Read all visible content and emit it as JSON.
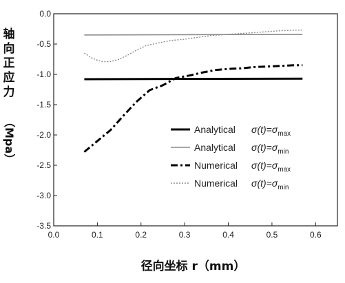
{
  "chart_data": {
    "type": "line",
    "title": "",
    "xlabel": "径向坐标 r（mm）",
    "ylabel_main": "轴向正应力",
    "ylabel_unit": "（Mpa）",
    "xlim": [
      0.0,
      0.65
    ],
    "ylim": [
      -3.5,
      0.0
    ],
    "x_ticks": [
      0.0,
      0.1,
      0.2,
      0.3,
      0.4,
      0.5,
      0.6
    ],
    "x_tick_labels": [
      "0.0",
      "0.1",
      "0.2",
      "0.3",
      "0.4",
      "0.5",
      "0.6"
    ],
    "y_ticks": [
      0.0,
      -0.5,
      -1.0,
      -1.5,
      -2.0,
      -2.5,
      -3.0,
      -3.5
    ],
    "y_tick_labels": [
      "0.0",
      "-0.5",
      "-1.0",
      "-1.5",
      "-2.0",
      "-2.5",
      "-3.0",
      "-3.5"
    ],
    "grid": false,
    "legend_position": "center-right",
    "series": [
      {
        "name_prefix": "Analytical",
        "name_cond": "σ(t)=σ",
        "name_sub": "max",
        "style": "solid-thick",
        "color": "#000000",
        "x": [
          0.07,
          0.57
        ],
        "y": [
          -1.08,
          -1.07
        ]
      },
      {
        "name_prefix": "Analytical",
        "name_cond": "σ(t)=σ",
        "name_sub": "min",
        "style": "solid-thin",
        "color": "#888888",
        "x": [
          0.07,
          0.57
        ],
        "y": [
          -0.35,
          -0.34
        ]
      },
      {
        "name_prefix": "Numerical",
        "name_cond": "σ(t)=σ",
        "name_sub": "max",
        "style": "dash-dot",
        "color": "#000000",
        "x": [
          0.07,
          0.1,
          0.13,
          0.16,
          0.19,
          0.22,
          0.25,
          0.28,
          0.31,
          0.34,
          0.37,
          0.4,
          0.43,
          0.46,
          0.49,
          0.52,
          0.55,
          0.57
        ],
        "y": [
          -2.28,
          -2.1,
          -1.92,
          -1.68,
          -1.45,
          -1.26,
          -1.18,
          -1.06,
          -1.02,
          -0.97,
          -0.93,
          -0.91,
          -0.9,
          -0.88,
          -0.87,
          -0.86,
          -0.85,
          -0.85
        ]
      },
      {
        "name_prefix": "Numerical",
        "name_cond": "σ(t)=σ",
        "name_sub": "min",
        "style": "dotted",
        "color": "#8a8a8a",
        "x": [
          0.07,
          0.09,
          0.11,
          0.13,
          0.15,
          0.17,
          0.19,
          0.21,
          0.24,
          0.27,
          0.3,
          0.33,
          0.36,
          0.4,
          0.44,
          0.48,
          0.52,
          0.55,
          0.57
        ],
        "y": [
          -0.65,
          -0.74,
          -0.79,
          -0.79,
          -0.75,
          -0.68,
          -0.6,
          -0.53,
          -0.48,
          -0.44,
          -0.42,
          -0.39,
          -0.36,
          -0.34,
          -0.32,
          -0.3,
          -0.28,
          -0.27,
          -0.27
        ]
      }
    ]
  }
}
